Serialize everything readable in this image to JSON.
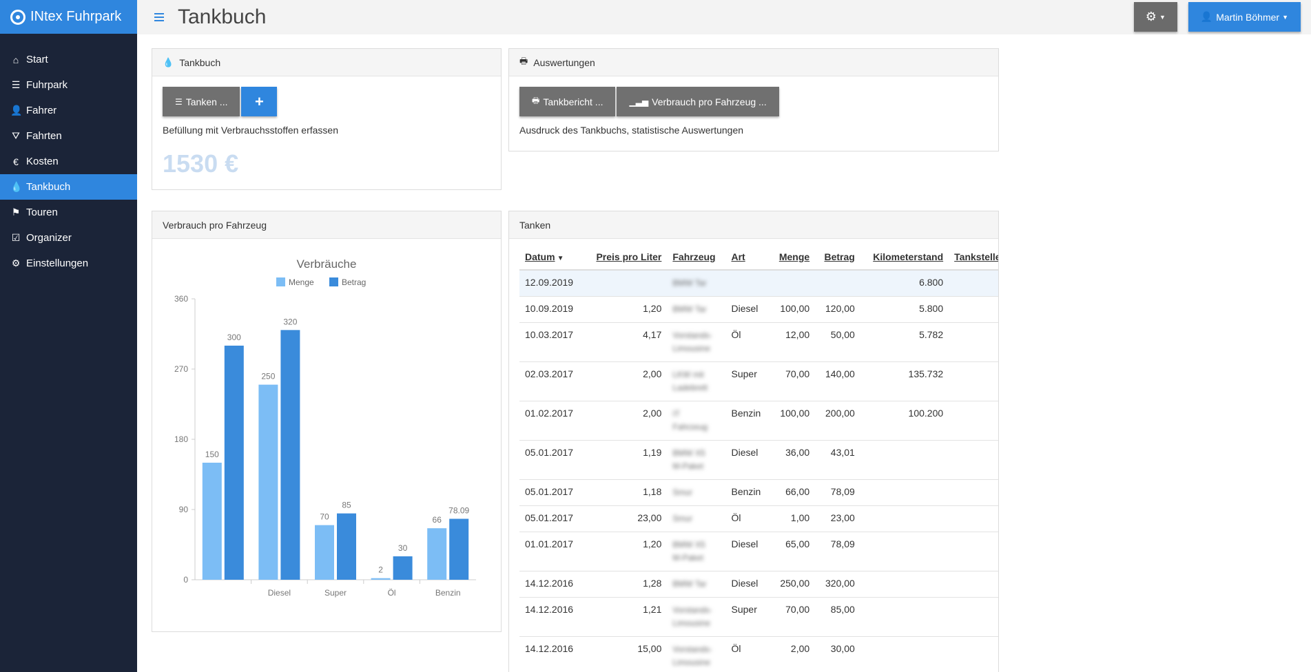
{
  "app": {
    "brand": "INtex Fuhrpark"
  },
  "header": {
    "title": "Tankbuch",
    "user_label": "Martin Böhmer"
  },
  "sidebar": {
    "items": [
      {
        "label": "Start",
        "icon": "home-icon"
      },
      {
        "label": "Fuhrpark",
        "icon": "list-icon"
      },
      {
        "label": "Fahrer",
        "icon": "user-icon"
      },
      {
        "label": "Fahrten",
        "icon": "road-icon"
      },
      {
        "label": "Kosten",
        "icon": "euro-icon"
      },
      {
        "label": "Tankbuch",
        "icon": "drop-icon",
        "active": true
      },
      {
        "label": "Touren",
        "icon": "flag-icon"
      },
      {
        "label": "Organizer",
        "icon": "check-icon"
      },
      {
        "label": "Einstellungen",
        "icon": "gear-icon"
      }
    ]
  },
  "tankbuch_panel": {
    "title": "Tankbuch",
    "tanken_button": "Tanken ...",
    "description": "Befüllung mit Verbrauchsstoffen erfassen",
    "total": "1530 €"
  },
  "auswertungen_panel": {
    "title": "Auswertungen",
    "report_button": "Tankbericht ...",
    "usage_button": "Verbrauch pro Fahrzeug ...",
    "description": "Ausdruck des Tankbuchs, statistische Auswertungen"
  },
  "chart_panel": {
    "title": "Verbrauch pro Fahrzeug"
  },
  "chart_data": {
    "type": "bar",
    "title": "Verbräuche",
    "categories": [
      "",
      "Diesel",
      "Super",
      "Öl",
      "Benzin"
    ],
    "series": [
      {
        "name": "Menge",
        "values": [
          150,
          250,
          70,
          2,
          66
        ],
        "labels": [
          "150",
          "250",
          "70",
          "2",
          "66"
        ],
        "color": "#7cbdf5"
      },
      {
        "name": "Betrag",
        "values": [
          300,
          320,
          85,
          30,
          78.09
        ],
        "labels": [
          "300",
          "320",
          "85",
          "30",
          "78.09"
        ],
        "color": "#3a8bdb"
      }
    ],
    "y_ticks": [
      "0",
      "90",
      "180",
      "270",
      "360"
    ],
    "ylim": [
      0,
      360
    ],
    "legend": "top"
  },
  "table_panel": {
    "title": "Tanken",
    "columns": [
      "Datum",
      "Preis pro Liter",
      "Fahrzeug",
      "Art",
      "Menge",
      "Betrag",
      "Kilometerstand",
      "Tankstelle"
    ],
    "rows": [
      {
        "datum": "12.09.2019",
        "preis": "",
        "fahrzeug": "BMW Tar",
        "art": "",
        "menge": "",
        "betrag": "",
        "km": "6.800",
        "tankstelle": "",
        "tall": false
      },
      {
        "datum": "10.09.2019",
        "preis": "1,20",
        "fahrzeug": "BMW Tar",
        "art": "Diesel",
        "menge": "100,00",
        "betrag": "120,00",
        "km": "5.800",
        "tankstelle": "",
        "tall": false
      },
      {
        "datum": "10.03.2017",
        "preis": "4,17",
        "fahrzeug": "Vorstands-Limousine",
        "art": "Öl",
        "menge": "12,00",
        "betrag": "50,00",
        "km": "5.782",
        "tankstelle": "",
        "tall": true
      },
      {
        "datum": "02.03.2017",
        "preis": "2,00",
        "fahrzeug": "LKW mit Ladebrett",
        "art": "Super",
        "menge": "70,00",
        "betrag": "140,00",
        "km": "135.732",
        "tankstelle": "",
        "tall": true
      },
      {
        "datum": "01.02.2017",
        "preis": "2,00",
        "fahrzeug": "IT Fahrzeug",
        "art": "Benzin",
        "menge": "100,00",
        "betrag": "200,00",
        "km": "100.200",
        "tankstelle": "",
        "tall": false
      },
      {
        "datum": "05.01.2017",
        "preis": "1,19",
        "fahrzeug": "BMW X5 M-Paket",
        "art": "Diesel",
        "menge": "36,00",
        "betrag": "43,01",
        "km": "",
        "tankstelle": "",
        "tall": true
      },
      {
        "datum": "05.01.2017",
        "preis": "1,18",
        "fahrzeug": "Smur",
        "art": "Benzin",
        "menge": "66,00",
        "betrag": "78,09",
        "km": "",
        "tankstelle": "",
        "tall": false
      },
      {
        "datum": "05.01.2017",
        "preis": "23,00",
        "fahrzeug": "Smur",
        "art": "Öl",
        "menge": "1,00",
        "betrag": "23,00",
        "km": "",
        "tankstelle": "",
        "tall": false
      },
      {
        "datum": "01.01.2017",
        "preis": "1,20",
        "fahrzeug": "BMW X5 M-Paket",
        "art": "Diesel",
        "menge": "65,00",
        "betrag": "78,09",
        "km": "",
        "tankstelle": "",
        "tall": true
      },
      {
        "datum": "14.12.2016",
        "preis": "1,28",
        "fahrzeug": "BMW Tar",
        "art": "Diesel",
        "menge": "250,00",
        "betrag": "320,00",
        "km": "",
        "tankstelle": "",
        "tall": false
      },
      {
        "datum": "14.12.2016",
        "preis": "1,21",
        "fahrzeug": "Vorstands-Limousine",
        "art": "Super",
        "menge": "70,00",
        "betrag": "85,00",
        "km": "",
        "tankstelle": "",
        "tall": true
      },
      {
        "datum": "14.12.2016",
        "preis": "15,00",
        "fahrzeug": "Vorstands-Limousine",
        "art": "Öl",
        "menge": "2,00",
        "betrag": "30,00",
        "km": "",
        "tankstelle": "",
        "tall": true
      }
    ]
  }
}
